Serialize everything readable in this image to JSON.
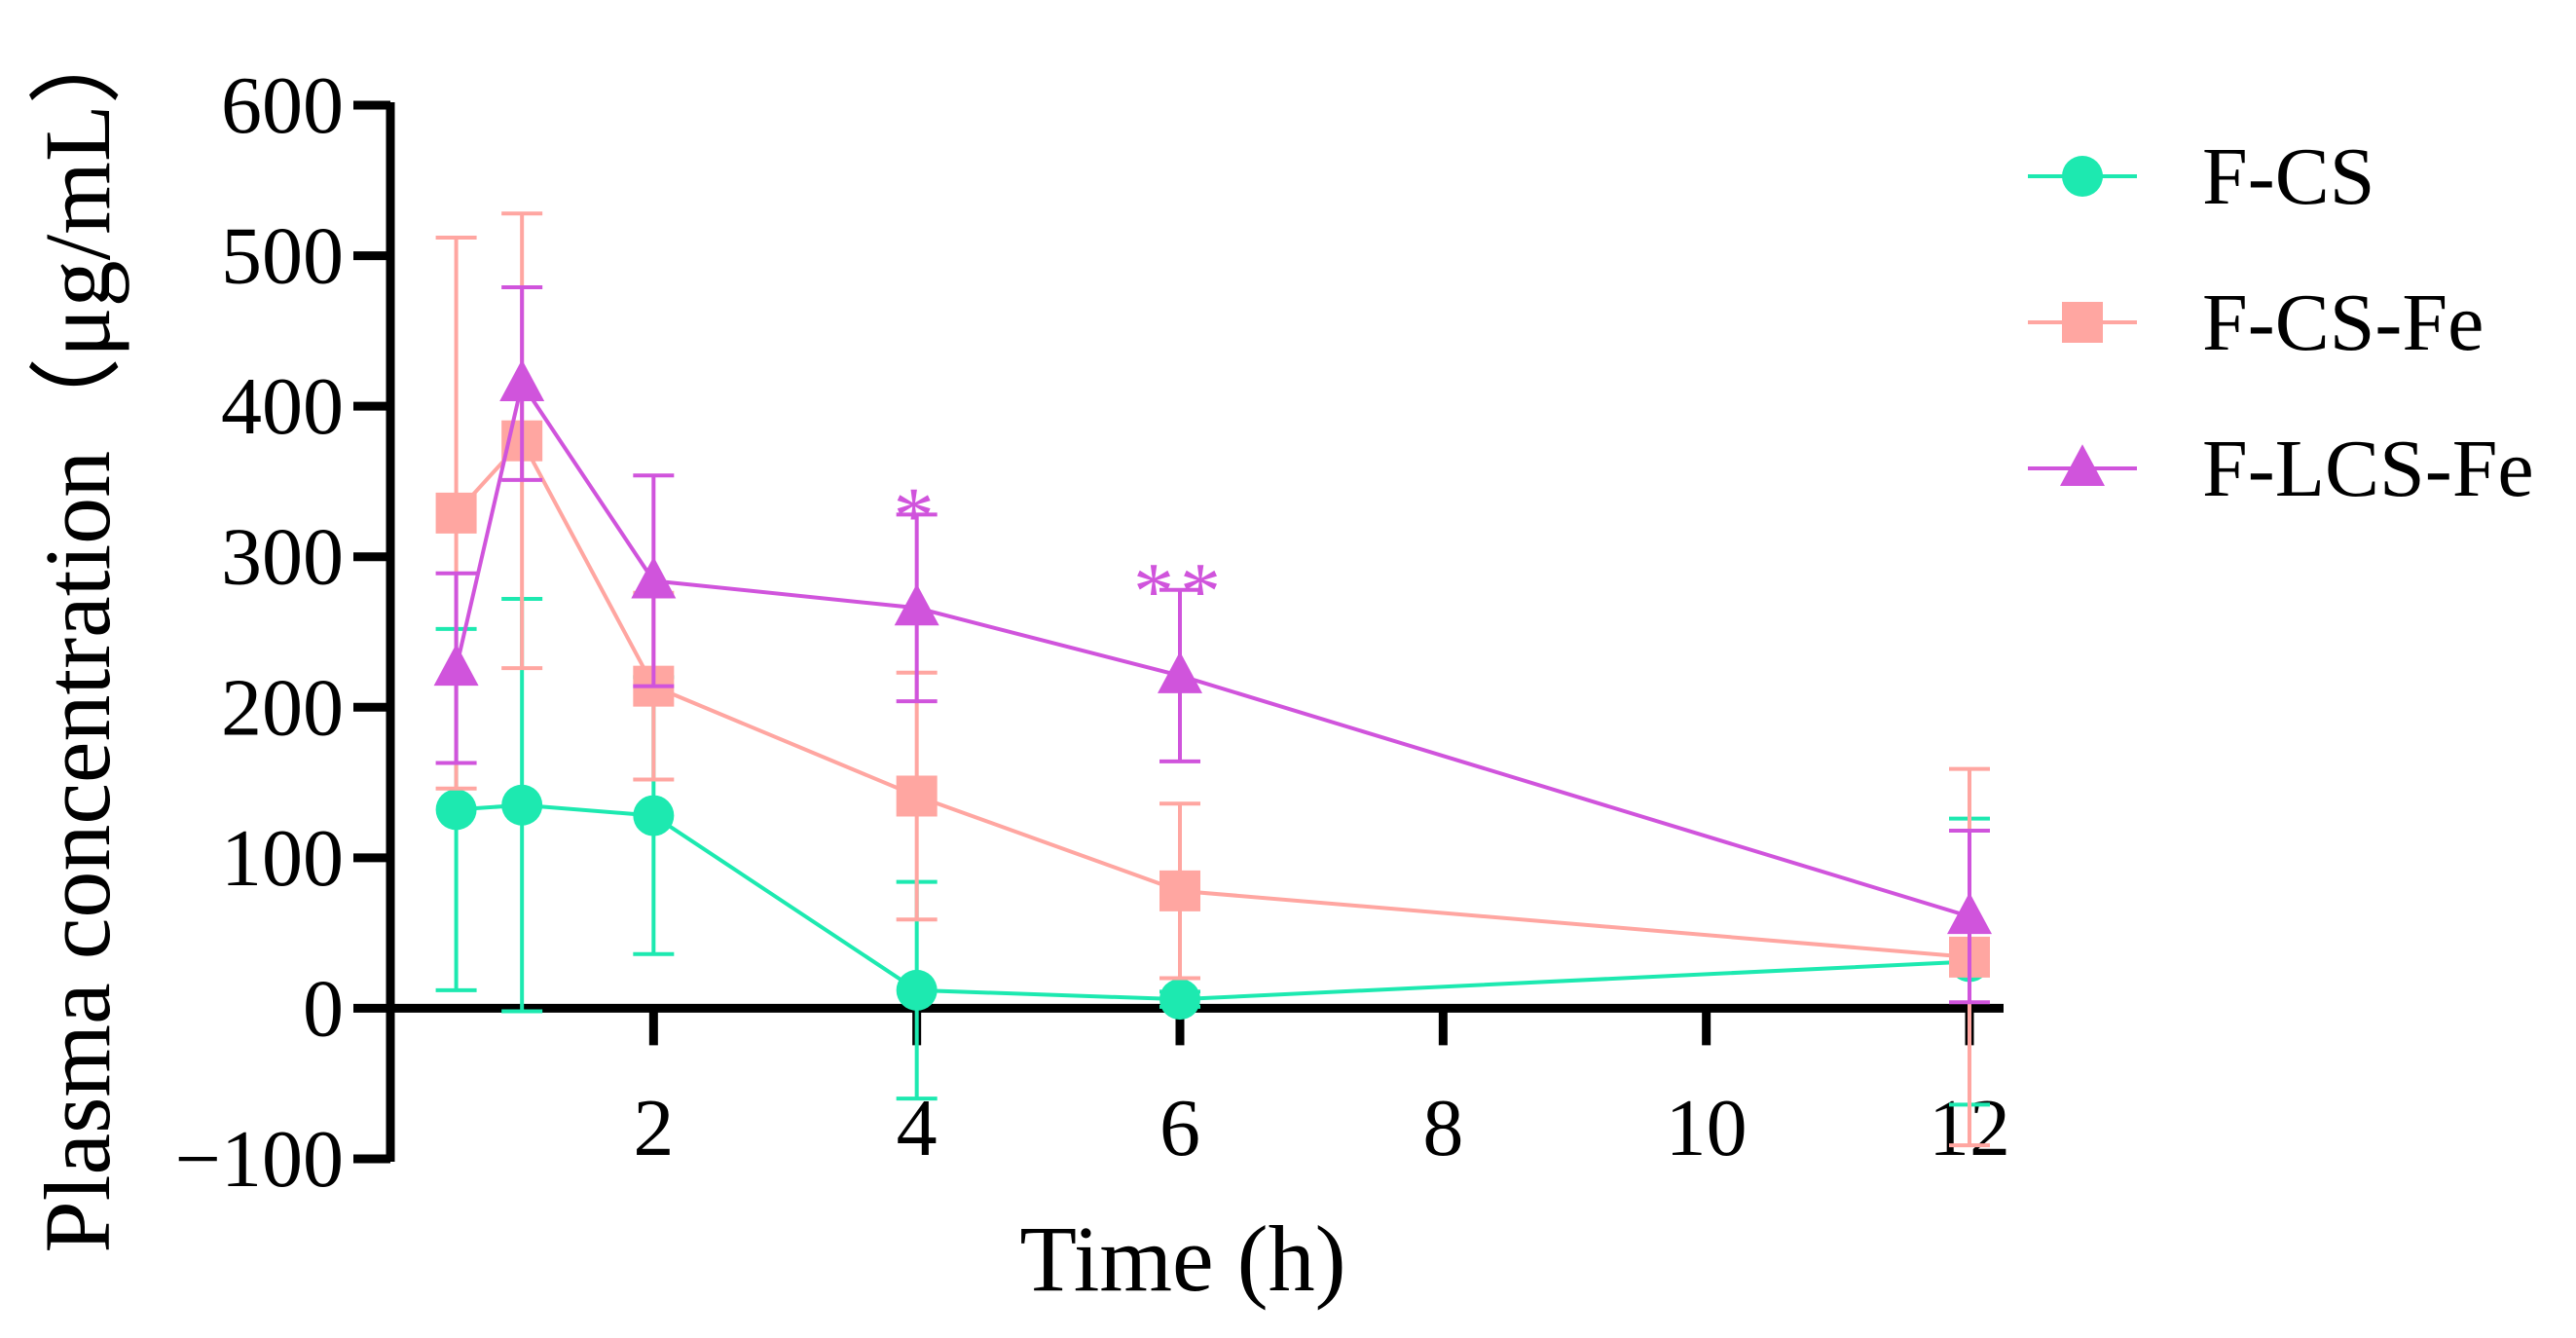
{
  "chart_data": {
    "type": "line",
    "title": "",
    "xlabel": "Time (h)",
    "ylabel": "Plasma concentration（μg/mL）",
    "xlim": [
      0,
      12.3
    ],
    "ylim": [
      -100,
      600
    ],
    "xticks": [
      2,
      4,
      6,
      8,
      10,
      12
    ],
    "yticks": [
      -100,
      0,
      100,
      200,
      300,
      400,
      500,
      600
    ],
    "xtick_labels": [
      "2",
      "4",
      "6",
      "8",
      "10",
      "12"
    ],
    "ytick_labels": [
      "−100",
      "0",
      "100",
      "200",
      "300",
      "400",
      "500",
      "600"
    ],
    "grid": false,
    "legend_position": "top-right",
    "series": [
      {
        "name": "F-CS",
        "color": "#1de9b0",
        "marker": "circle",
        "x": [
          0.5,
          1,
          2,
          4,
          6,
          12
        ],
        "y": [
          132,
          135,
          128,
          12,
          6,
          31
        ],
        "err": [
          120,
          137,
          92,
          72,
          5,
          95
        ]
      },
      {
        "name": "F-CS-Fe",
        "color": "#ffa6a1",
        "marker": "square",
        "x": [
          0.5,
          1,
          2,
          4,
          6,
          12
        ],
        "y": [
          329,
          377,
          214,
          141,
          78,
          34
        ],
        "err": [
          183,
          151,
          62,
          82,
          58,
          125
        ]
      },
      {
        "name": "F-LCS-Fe",
        "color": "#d054dc",
        "marker": "triangle",
        "x": [
          0.5,
          1,
          2,
          4,
          6,
          12
        ],
        "y": [
          226,
          415,
          284,
          266,
          221,
          61
        ],
        "err": [
          63,
          64,
          70,
          62,
          57,
          57
        ]
      }
    ],
    "annotations": [
      {
        "text": "*",
        "x": 4,
        "y": 335,
        "color": "#d054dc"
      },
      {
        "text": "**",
        "x": 6,
        "y": 285,
        "color": "#d054dc"
      }
    ]
  }
}
